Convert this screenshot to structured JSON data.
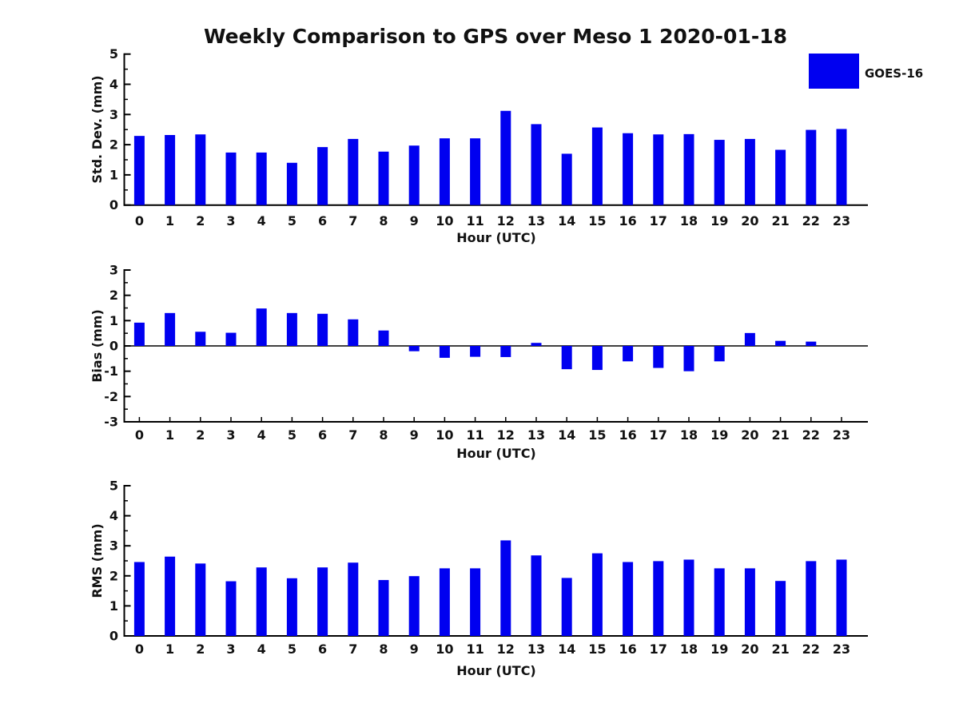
{
  "title": "Weekly Comparison to GPS over Meso 1 2020-01-18",
  "legend": {
    "label": "GOES-16",
    "swatch_color": "#0000f0"
  },
  "colors": {
    "bar": "#0000f0",
    "axis": "#000000",
    "text": "#111111",
    "background": "#ffffff"
  },
  "chart_data": [
    {
      "type": "bar",
      "id": "stddev",
      "ylabel": "Std. Dev. (mm)",
      "xlabel": "Hour (UTC)",
      "ylim": [
        0,
        5
      ],
      "yticks": [
        0,
        1,
        2,
        3,
        4,
        5
      ],
      "grid": false,
      "legend_position": "upper-right-above-axes",
      "categories": [
        "0",
        "1",
        "2",
        "3",
        "4",
        "5",
        "6",
        "7",
        "8",
        "9",
        "10",
        "11",
        "12",
        "13",
        "14",
        "15",
        "16",
        "17",
        "18",
        "19",
        "20",
        "21",
        "22",
        "23"
      ],
      "series": [
        {
          "name": "GOES-16",
          "values": [
            2.29,
            2.32,
            2.34,
            1.74,
            1.74,
            1.4,
            1.92,
            2.19,
            1.77,
            1.97,
            2.21,
            2.21,
            3.12,
            2.68,
            1.7,
            2.57,
            2.38,
            2.34,
            2.35,
            2.16,
            2.19,
            1.83,
            2.49,
            2.52
          ]
        }
      ]
    },
    {
      "type": "bar",
      "id": "bias",
      "ylabel": "Bias (mm)",
      "xlabel": "Hour (UTC)",
      "ylim": [
        -3,
        3
      ],
      "yticks": [
        -3,
        -2,
        -1,
        0,
        1,
        2,
        3
      ],
      "grid": false,
      "categories": [
        "0",
        "1",
        "2",
        "3",
        "4",
        "5",
        "6",
        "7",
        "8",
        "9",
        "10",
        "11",
        "12",
        "13",
        "14",
        "15",
        "16",
        "17",
        "18",
        "19",
        "20",
        "21",
        "22",
        "23"
      ],
      "series": [
        {
          "name": "GOES-16",
          "values": [
            0.92,
            1.3,
            0.56,
            0.52,
            1.48,
            1.3,
            1.27,
            1.05,
            0.61,
            -0.21,
            -0.47,
            -0.43,
            -0.44,
            0.12,
            -0.92,
            -0.95,
            -0.61,
            -0.87,
            -1.0,
            -0.61,
            0.51,
            0.2,
            0.17,
            0.0
          ]
        }
      ]
    },
    {
      "type": "bar",
      "id": "rms",
      "ylabel": "RMS (mm)",
      "xlabel": "Hour (UTC)",
      "ylim": [
        0,
        5
      ],
      "yticks": [
        0,
        1,
        2,
        3,
        4,
        5
      ],
      "grid": false,
      "categories": [
        "0",
        "1",
        "2",
        "3",
        "4",
        "5",
        "6",
        "7",
        "8",
        "9",
        "10",
        "11",
        "12",
        "13",
        "14",
        "15",
        "16",
        "17",
        "18",
        "19",
        "20",
        "21",
        "22",
        "23"
      ],
      "series": [
        {
          "name": "GOES-16",
          "values": [
            2.46,
            2.64,
            2.41,
            1.82,
            2.28,
            1.92,
            2.28,
            2.44,
            1.86,
            1.99,
            2.25,
            2.25,
            3.18,
            2.68,
            1.93,
            2.75,
            2.46,
            2.49,
            2.54,
            2.25,
            2.25,
            1.83,
            2.49,
            2.54
          ]
        }
      ]
    }
  ]
}
